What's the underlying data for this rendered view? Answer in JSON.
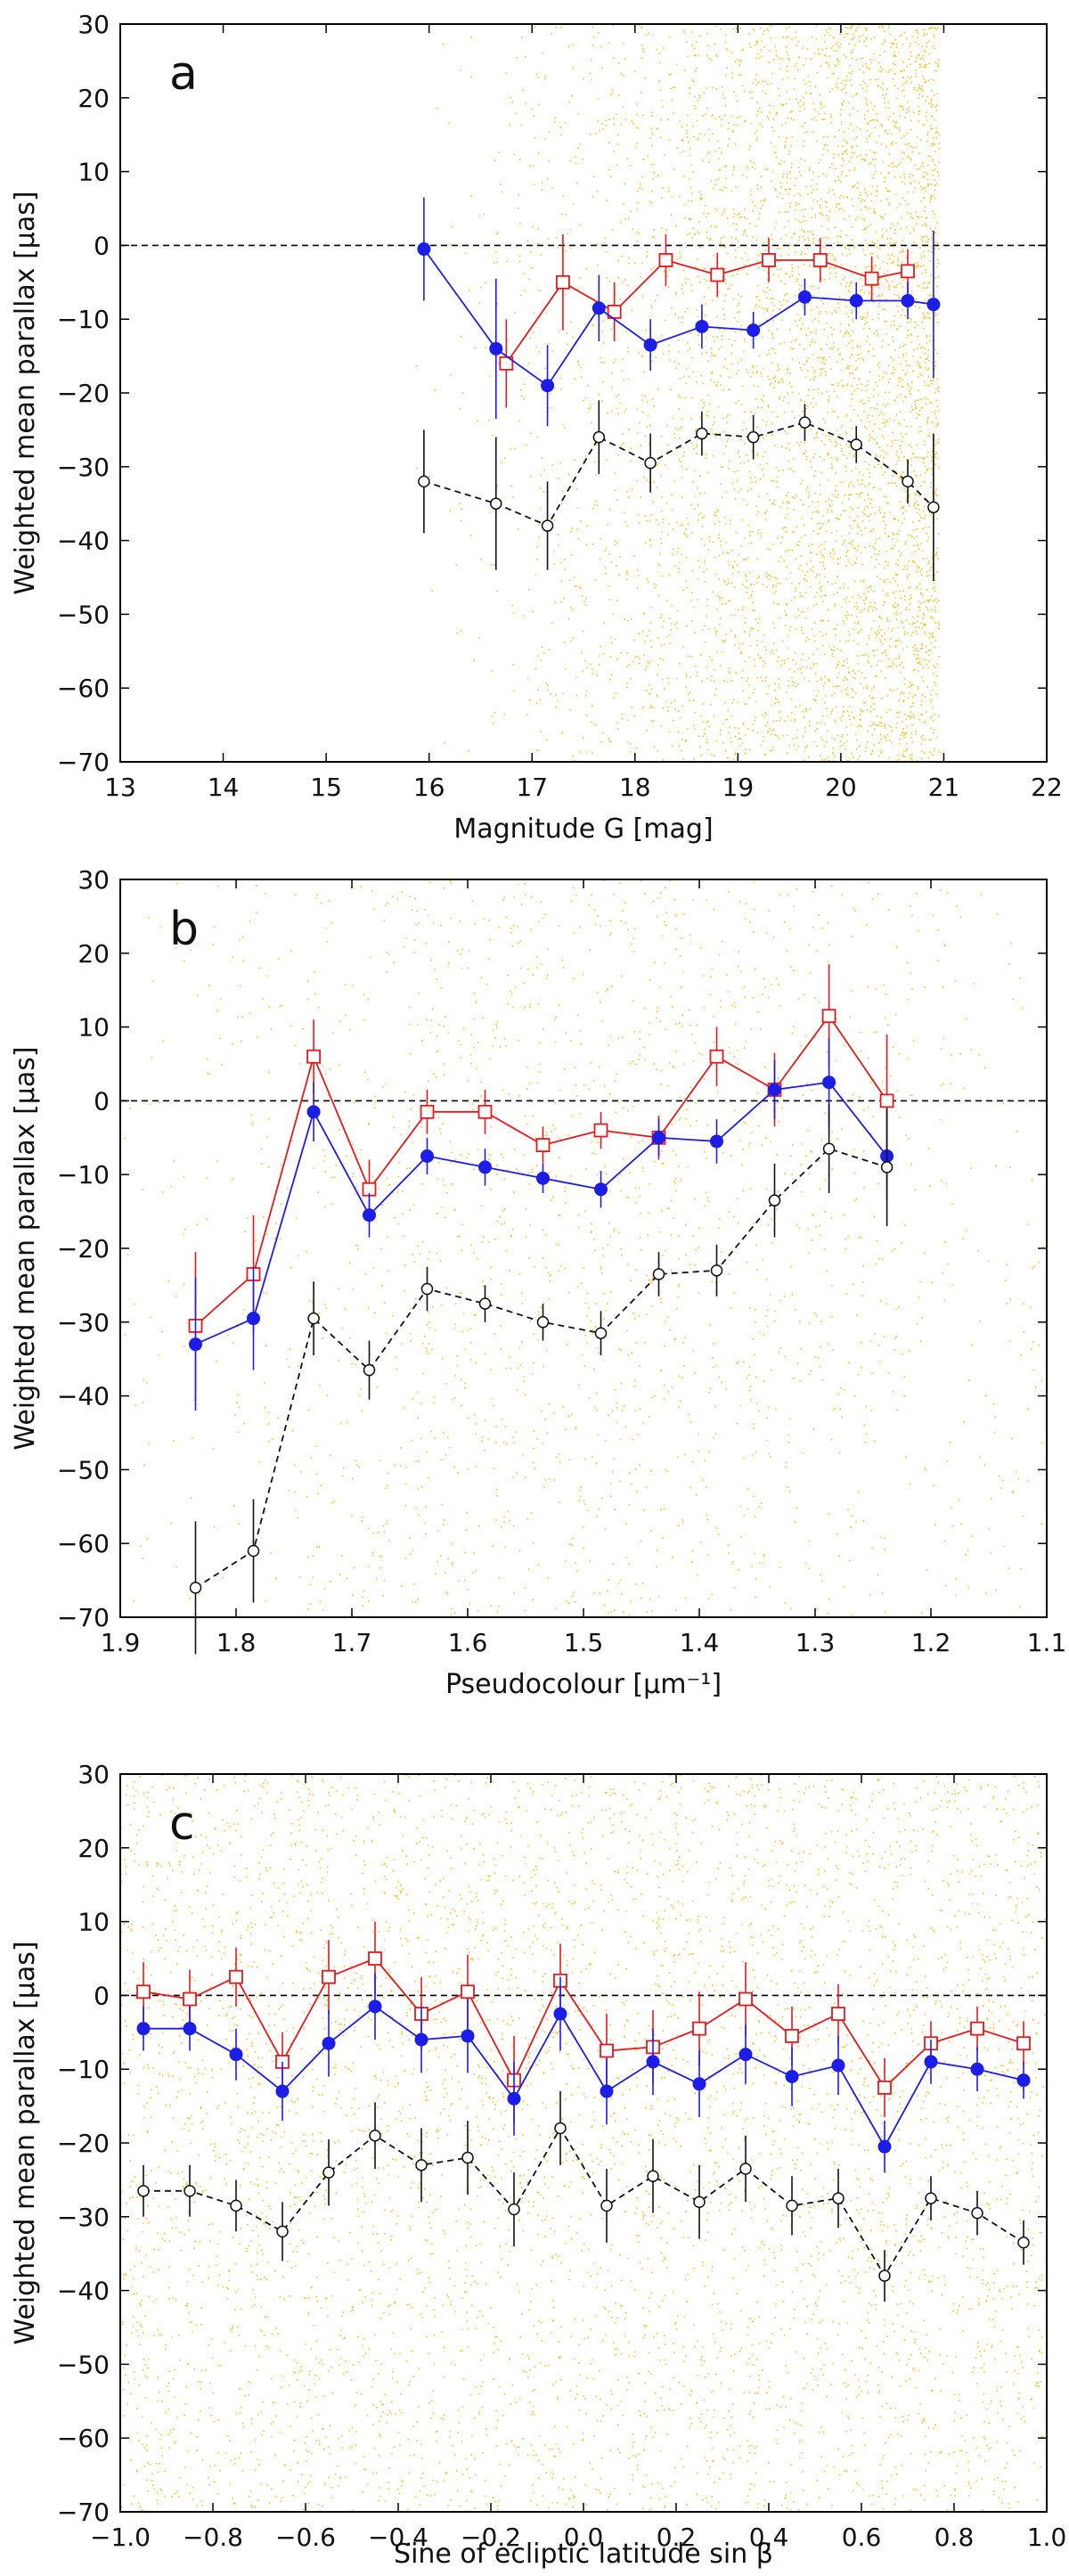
{
  "chart_data": [
    {
      "panel": "a",
      "type": "scatter",
      "title": "",
      "xlabel": "Magnitude G [mag]",
      "ylabel": "Weighted mean parallax [μas]",
      "xlim": [
        13,
        22
      ],
      "ylim": [
        -70,
        30
      ],
      "x_reversed": false,
      "xticks": [
        13,
        14,
        15,
        16,
        17,
        18,
        19,
        20,
        21,
        22
      ],
      "xtick_labels": [
        "13",
        "14",
        "15",
        "16",
        "17",
        "18",
        "19",
        "20",
        "21",
        "22"
      ],
      "yticks": [
        30,
        20,
        10,
        0,
        -10,
        -20,
        -30,
        -40,
        -50,
        -60,
        -70
      ],
      "ytick_labels": [
        "30",
        "20",
        "10",
        "0",
        "−10",
        "−20",
        "−30",
        "−40",
        "−50",
        "−60",
        "−70"
      ],
      "reference_line": 0,
      "background_scatter": {
        "color": "#f0b800",
        "x_range": [
          16,
          20.95
        ],
        "distribution": "density rising toward G = 21"
      },
      "series": [
        {
          "name": "red squares",
          "color": "#e41a1c",
          "marker": "open-square",
          "dashed": false,
          "x": [
            16.75,
            17.3,
            17.8,
            18.3,
            18.8,
            19.3,
            19.8,
            20.3,
            20.65
          ],
          "y": [
            -16,
            -5,
            -9,
            -2,
            -4,
            -2,
            -2,
            -4.5,
            -3.5
          ],
          "err": [
            6,
            6.5,
            4,
            3.5,
            3,
            3,
            3,
            3,
            3
          ]
        },
        {
          "name": "blue dots",
          "color": "#1d1de8",
          "marker": "filled-circle",
          "dashed": false,
          "x": [
            15.95,
            16.65,
            17.15,
            17.65,
            18.15,
            18.65,
            19.15,
            19.65,
            20.15,
            20.65,
            20.9
          ],
          "y": [
            -0.5,
            -14,
            -19,
            -8.5,
            -13.5,
            -11,
            -11.5,
            -7,
            -7.5,
            -7.5,
            -8
          ],
          "err": [
            7,
            9.5,
            5.5,
            4.5,
            3.5,
            3,
            2.5,
            2.5,
            2.5,
            2.5,
            10
          ]
        },
        {
          "name": "black open circles",
          "color": "#111111",
          "marker": "open-circle",
          "dashed": true,
          "x": [
            15.95,
            16.65,
            17.15,
            17.65,
            18.15,
            18.65,
            19.15,
            19.65,
            20.15,
            20.65,
            20.9
          ],
          "y": [
            -32,
            -35,
            -38,
            -26,
            -29.5,
            -25.5,
            -26,
            -24,
            -27,
            -32,
            -35.5
          ],
          "err": [
            7,
            9,
            6,
            5,
            4,
            3,
            3,
            2.5,
            2.5,
            3,
            10
          ]
        }
      ]
    },
    {
      "panel": "b",
      "type": "scatter",
      "title": "",
      "xlabel": "Pseudocolour [μm⁻¹]",
      "ylabel": "Weighted mean parallax [μas]",
      "xlim": [
        1.9,
        1.1
      ],
      "ylim": [
        -70,
        30
      ],
      "x_reversed": true,
      "xticks": [
        1.9,
        1.8,
        1.7,
        1.6,
        1.5,
        1.4,
        1.3,
        1.2,
        1.1
      ],
      "xtick_labels": [
        "1.9",
        "1.8",
        "1.7",
        "1.6",
        "1.5",
        "1.4",
        "1.3",
        "1.2",
        "1.1"
      ],
      "yticks": [
        30,
        20,
        10,
        0,
        -10,
        -20,
        -30,
        -40,
        -50,
        -60,
        -70
      ],
      "ytick_labels": [
        "30",
        "20",
        "10",
        "0",
        "−10",
        "−20",
        "−30",
        "−40",
        "−50",
        "−60",
        "−70"
      ],
      "reference_line": 0,
      "background_scatter": {
        "color": "#f0b800",
        "x_range": [
          1.9,
          1.1
        ],
        "distribution": "dense near 1.5–1.6"
      },
      "series": [
        {
          "name": "red squares",
          "color": "#e41a1c",
          "marker": "open-square",
          "dashed": false,
          "x": [
            1.835,
            1.785,
            1.733,
            1.685,
            1.635,
            1.585,
            1.535,
            1.485,
            1.435,
            1.385,
            1.335,
            1.288,
            1.238
          ],
          "y": [
            -30.5,
            -23.5,
            6,
            -12,
            -1.5,
            -1.5,
            -6,
            -4,
            -5,
            6,
            1.5,
            11.5,
            0
          ],
          "err": [
            10,
            8,
            5,
            4,
            3,
            3,
            2.5,
            2.5,
            3,
            4,
            5,
            7,
            9
          ]
        },
        {
          "name": "blue dots",
          "color": "#1d1de8",
          "marker": "filled-circle",
          "dashed": false,
          "x": [
            1.835,
            1.785,
            1.733,
            1.685,
            1.635,
            1.585,
            1.535,
            1.485,
            1.435,
            1.385,
            1.335,
            1.288,
            1.238
          ],
          "y": [
            -33,
            -29.5,
            -1.5,
            -15.5,
            -7.5,
            -9,
            -10.5,
            -12,
            -5,
            -5.5,
            1.5,
            2.5,
            -7.5
          ],
          "err": [
            9,
            7,
            4,
            3,
            2.5,
            2.5,
            2,
            2.5,
            2.5,
            3,
            4,
            6,
            6
          ]
        },
        {
          "name": "black open circles",
          "color": "#111111",
          "marker": "open-circle",
          "dashed": true,
          "x": [
            1.835,
            1.785,
            1.733,
            1.685,
            1.635,
            1.585,
            1.535,
            1.485,
            1.435,
            1.385,
            1.335,
            1.288,
            1.238
          ],
          "y": [
            -66,
            -61,
            -29.5,
            -36.5,
            -25.5,
            -27.5,
            -30,
            -31.5,
            -23.5,
            -23,
            -13.5,
            -6.5,
            -9
          ],
          "err": [
            9,
            7,
            5,
            4,
            3,
            2.5,
            2.5,
            3,
            3,
            3.5,
            5,
            6,
            8
          ]
        }
      ]
    },
    {
      "panel": "c",
      "type": "scatter",
      "title": "",
      "xlabel": "Sine of ecliptic latitude sin β",
      "ylabel": "Weighted mean parallax [μas]",
      "xlim": [
        -1.0,
        1.0
      ],
      "ylim": [
        -70,
        30
      ],
      "x_reversed": false,
      "xticks": [
        -1.0,
        -0.8,
        -0.6,
        -0.4,
        -0.2,
        0.0,
        0.2,
        0.4,
        0.6,
        0.8,
        1.0
      ],
      "xtick_labels": [
        "−1.0",
        "−0.8",
        "−0.6",
        "−0.4",
        "−0.2",
        "0.0",
        "0.2",
        "0.4",
        "0.6",
        "0.8",
        "1.0"
      ],
      "yticks": [
        30,
        20,
        10,
        0,
        -10,
        -20,
        -30,
        -40,
        -50,
        -60,
        -70
      ],
      "ytick_labels": [
        "30",
        "20",
        "10",
        "0",
        "−10",
        "−20",
        "−30",
        "−40",
        "−50",
        "−60",
        "−70"
      ],
      "reference_line": 0,
      "background_scatter": {
        "color": "#f0b800",
        "x_range": [
          -1.0,
          1.0
        ],
        "distribution": "uniform"
      },
      "series": [
        {
          "name": "red squares",
          "color": "#e41a1c",
          "marker": "open-square",
          "dashed": false,
          "x": [
            -0.95,
            -0.85,
            -0.75,
            -0.65,
            -0.55,
            -0.45,
            -0.35,
            -0.25,
            -0.15,
            -0.05,
            0.05,
            0.15,
            0.25,
            0.35,
            0.45,
            0.55,
            0.65,
            0.75,
            0.85,
            0.95
          ],
          "y": [
            0.5,
            -0.5,
            2.5,
            -9,
            2.5,
            5,
            -2.5,
            0.5,
            -11.5,
            2,
            -7.5,
            -7,
            -4.5,
            -0.5,
            -5.5,
            -2.5,
            -12.5,
            -6.5,
            -4.5,
            -6.5
          ],
          "err": [
            4,
            4,
            4,
            4,
            5,
            5,
            5,
            5,
            6,
            5,
            5,
            5,
            5,
            5,
            4,
            4,
            4,
            3,
            3,
            3
          ]
        },
        {
          "name": "blue dots",
          "color": "#1d1de8",
          "marker": "filled-circle",
          "dashed": false,
          "x": [
            -0.95,
            -0.85,
            -0.75,
            -0.65,
            -0.55,
            -0.45,
            -0.35,
            -0.25,
            -0.15,
            -0.05,
            0.05,
            0.15,
            0.25,
            0.35,
            0.45,
            0.55,
            0.65,
            0.75,
            0.85,
            0.95
          ],
          "y": [
            -4.5,
            -4.5,
            -8,
            -13,
            -6.5,
            -1.5,
            -6,
            -5.5,
            -14,
            -2.5,
            -13,
            -9,
            -12,
            -8,
            -11,
            -9.5,
            -20.5,
            -9,
            -10,
            -11.5
          ],
          "err": [
            3,
            3,
            3.5,
            4,
            4.5,
            4.5,
            4.5,
            5,
            5,
            5,
            4.5,
            4.5,
            4.5,
            4,
            4,
            4,
            3.5,
            3,
            3,
            2.5
          ]
        },
        {
          "name": "black open circles",
          "color": "#111111",
          "marker": "open-circle",
          "dashed": true,
          "x": [
            -0.95,
            -0.85,
            -0.75,
            -0.65,
            -0.55,
            -0.45,
            -0.35,
            -0.25,
            -0.15,
            -0.05,
            0.05,
            0.15,
            0.25,
            0.35,
            0.45,
            0.55,
            0.65,
            0.75,
            0.85,
            0.95
          ],
          "y": [
            -26.5,
            -26.5,
            -28.5,
            -32,
            -24,
            -19,
            -23,
            -22,
            -29,
            -18,
            -28.5,
            -24.5,
            -28,
            -23.5,
            -28.5,
            -27.5,
            -38,
            -27.5,
            -29.5,
            -33.5
          ],
          "err": [
            3.5,
            3.5,
            3.5,
            4,
            4.5,
            4.5,
            5,
            5,
            5,
            5,
            5,
            5,
            5,
            4.5,
            4,
            4,
            3.5,
            3,
            3,
            3
          ]
        }
      ]
    }
  ]
}
